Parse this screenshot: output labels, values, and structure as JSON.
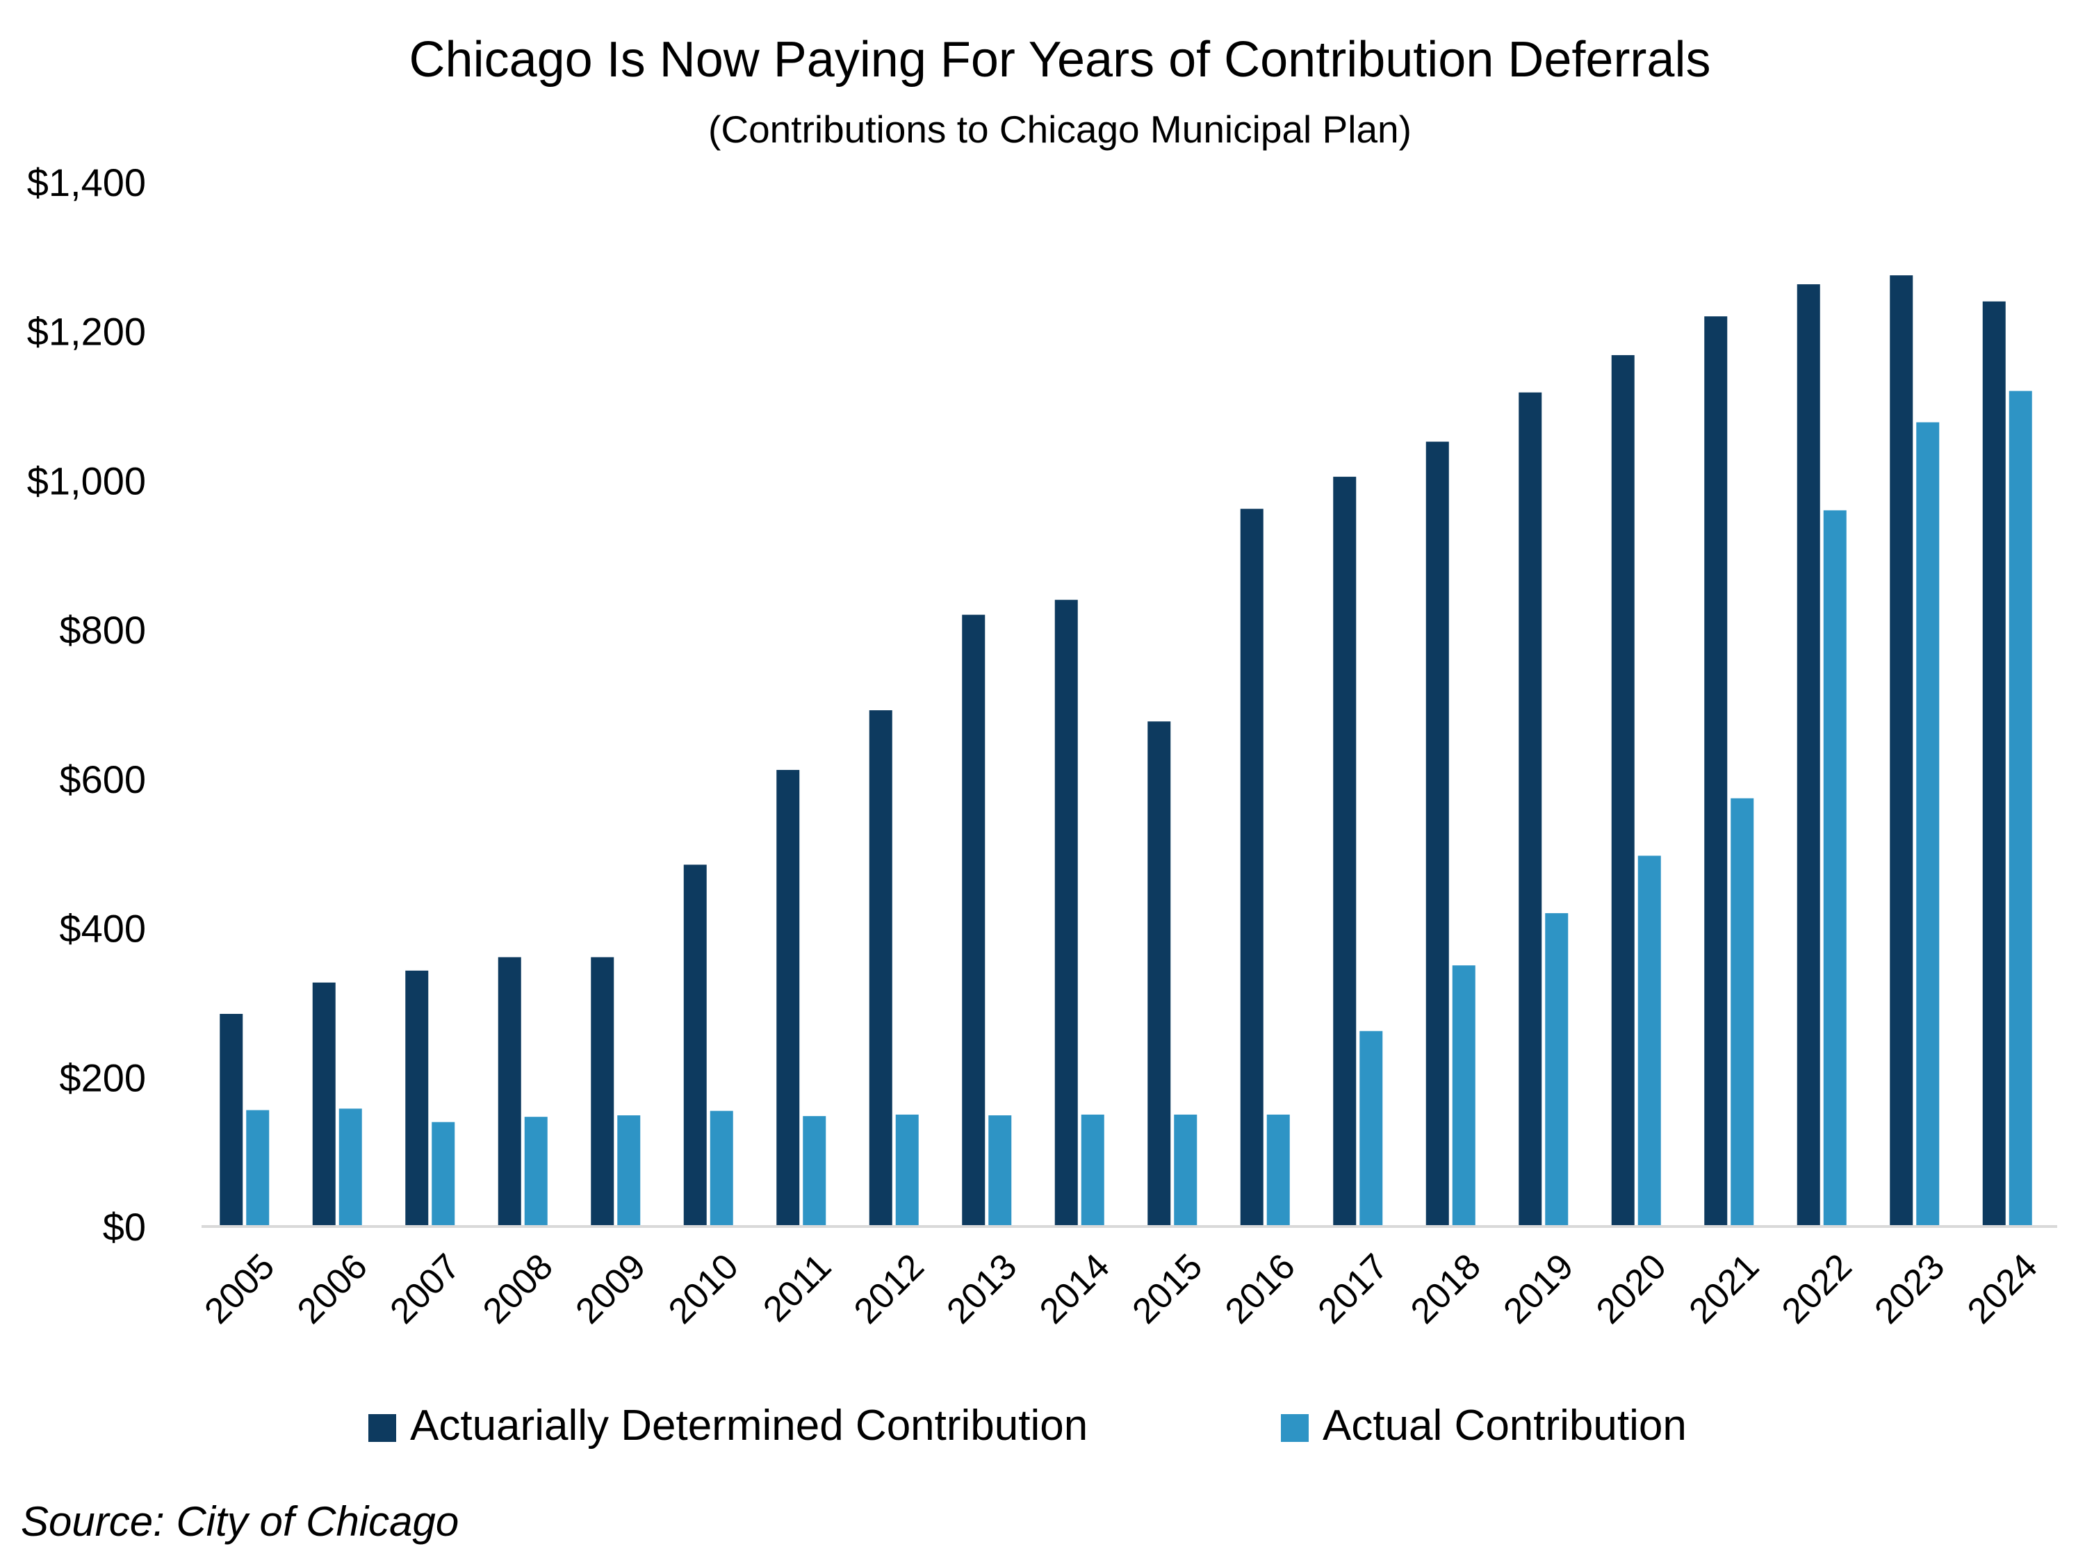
{
  "chart_data": {
    "type": "bar",
    "title": "Chicago Is Now Paying For Years of Contribution Deferrals",
    "subtitle": "(Contributions to Chicago Municipal Plan)",
    "xlabel": "",
    "ylabel": "",
    "ylim": [
      0,
      1400
    ],
    "yticks": [
      0,
      200,
      400,
      600,
      800,
      1000,
      1200,
      1400
    ],
    "ytick_labels": [
      "$0",
      "$200",
      "$400",
      "$600",
      "$800",
      "$1,000",
      "$1,200",
      "$1,400"
    ],
    "grid": false,
    "legend_position": "bottom",
    "categories": [
      "2005",
      "2006",
      "2007",
      "2008",
      "2009",
      "2010",
      "2011",
      "2012",
      "2013",
      "2014",
      "2015",
      "2016",
      "2017",
      "2018",
      "2019",
      "2020",
      "2021",
      "2022",
      "2023",
      "2024"
    ],
    "series": [
      {
        "name": "Actuarially Determined Contribution",
        "color": "#0d3a5f",
        "values": [
          285,
          327,
          343,
          361,
          361,
          485,
          612,
          692,
          820,
          840,
          677,
          962,
          1005,
          1052,
          1118,
          1168,
          1220,
          1263,
          1275,
          1240
        ]
      },
      {
        "name": "Actual Contribution",
        "color": "#2e94c5",
        "values": [
          156,
          158,
          140,
          147,
          149,
          155,
          148,
          150,
          149,
          150,
          150,
          150,
          262,
          350,
          420,
          497,
          574,
          960,
          1078,
          1120
        ]
      }
    ],
    "source": "Source: City of Chicago"
  }
}
